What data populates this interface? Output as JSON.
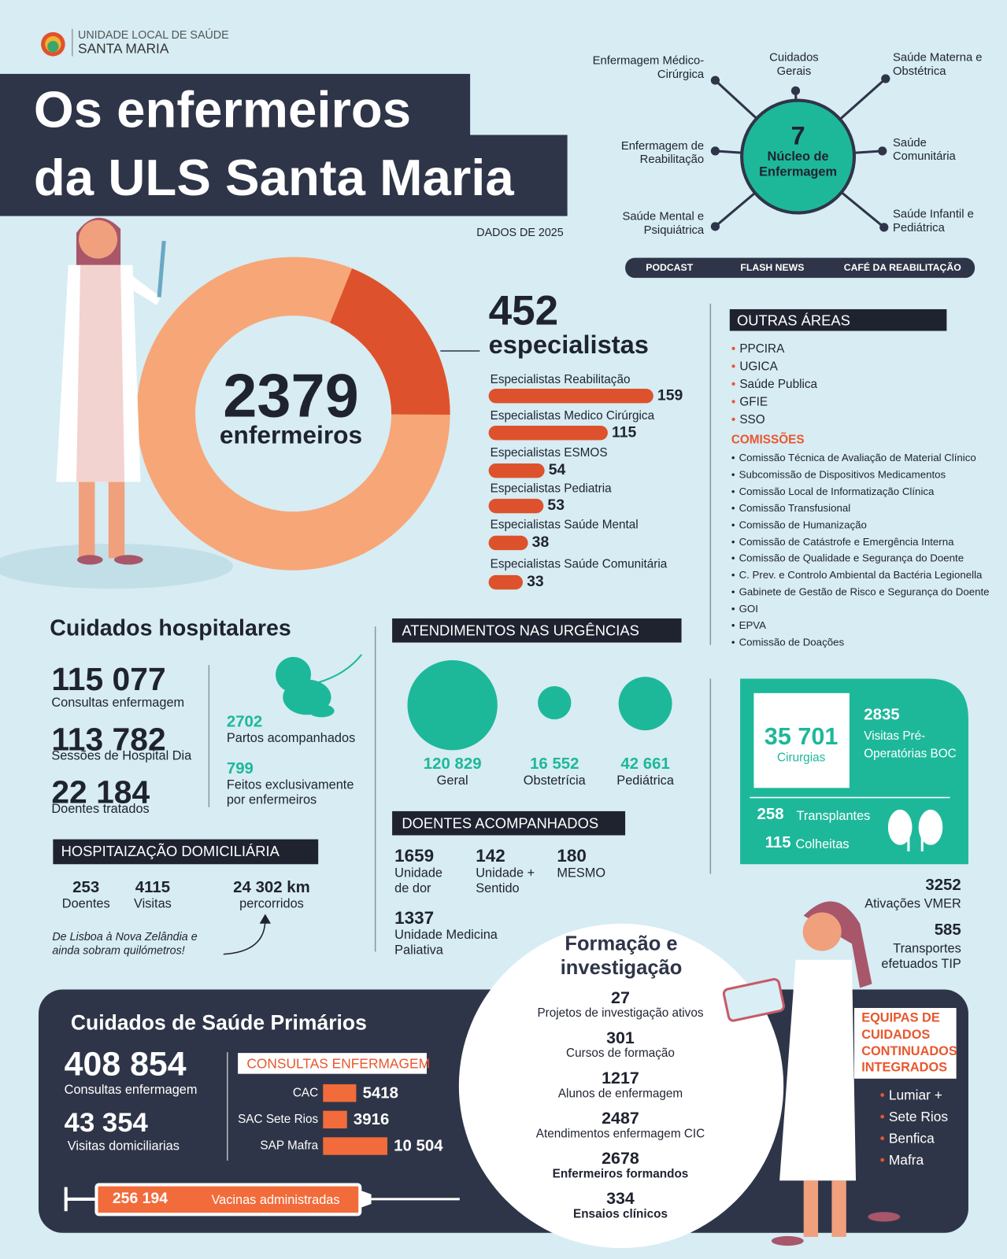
{
  "header": {
    "org_line1": "UNIDADE LOCAL DE SAÚDE",
    "org_line2": "SANTA MARIA",
    "title_line1": "Os enfermeiros",
    "title_line2": "da ULS Santa Maria",
    "date": "DADOS DE 2025"
  },
  "nucleo": {
    "count": "7",
    "label": "Núcleo de Enfermagem",
    "areas": [
      "Enfermagem Médico-Cirúrgica",
      "Cuidados Gerais",
      "Saúde Materna e Obstétrica",
      "Enfermagem de Reabilitação",
      "Saúde Comunitária",
      "Saúde Mental e Psiquiátrica",
      "Saúde Infantil e Pediátrica"
    ]
  },
  "tabs": [
    "PODCAST",
    "FLASH NEWS",
    "CAFÉ DA REABILITAÇÃO"
  ],
  "total": {
    "value": 2379,
    "label": "enfermeiros"
  },
  "especialistas": {
    "value": 452,
    "label": "especialistas",
    "items": [
      {
        "name": "Especialistas Reabilitação",
        "value": 159
      },
      {
        "name": "Especialistas Medico Cirúrgica",
        "value": 115
      },
      {
        "name": "Especialistas ESMOS",
        "value": 54
      },
      {
        "name": "Especialistas Pediatria",
        "value": 53
      },
      {
        "name": "Especialistas Saúde Mental",
        "value": 38
      },
      {
        "name": "Especialistas Saúde Comunitária",
        "value": 33
      }
    ]
  },
  "outras_areas": {
    "title": "OUTRAS ÁREAS",
    "items": [
      "PPCIRA",
      "UGICA",
      "Saúde Publica",
      "GFIE",
      "SSO"
    ],
    "comissoes_title": "COMISSÕES",
    "comissoes": [
      "Comissão Técnica de Avaliação de Material Clínico",
      "Subcomissão de Dispositivos Medicamentos",
      "Comissão Local de Informatização Clínica",
      "Comissão Transfusional",
      "Comissão de Humanização",
      "Comissão de Catástrofe e Emergência Interna",
      "Comissão de Qualidade e Segurança do Doente",
      "C. Prev. e Controlo Ambiental da Bactéria Legionella",
      "Gabinete de Gestão de Risco e Segurança do Doente",
      "GOI",
      "EPVA",
      "Comissão de Doações"
    ]
  },
  "hospitalares": {
    "title": "Cuidados hospitalares",
    "stats": [
      {
        "value": "115 077",
        "label": "Consultas enfermagem"
      },
      {
        "value": "113 782",
        "label": "Sessões de Hospital Dia"
      },
      {
        "value": "22 184",
        "label": "Doentes tratados"
      }
    ],
    "partos": {
      "value": "2702",
      "label": "Partos acompanhados"
    },
    "exclusivos": {
      "value": "799",
      "label": "Feitos exclusivamente por enfermeiros"
    }
  },
  "urgencias": {
    "title": "ATENDIMENTOS NAS URGÊNCIAS",
    "items": [
      {
        "value": 120829,
        "value_label": "120 829",
        "label": "Geral"
      },
      {
        "value": 16552,
        "value_label": "16 552",
        "label": "Obstetrícia"
      },
      {
        "value": 42661,
        "value_label": "42 661",
        "label": "Pediátrica"
      }
    ]
  },
  "doentes": {
    "title": "DOENTES ACOMPANHADOS",
    "items": [
      {
        "value": "1659",
        "label": "Unidade de dor"
      },
      {
        "value": "142",
        "label": "Unidade + Sentido"
      },
      {
        "value": "180",
        "label": "MESMO"
      },
      {
        "value": "1337",
        "label": "Unidade Medicina Paliativa"
      }
    ]
  },
  "cirurgias": {
    "value": "35 701",
    "label": "Cirurgias",
    "visitas_value": "2835",
    "visitas_label": "Visitas Pré-Operatórias BOC",
    "transplantes_value": "258",
    "transplantes_label": "Transplantes",
    "colheitas_value": "115",
    "colheitas_label": "Colheitas"
  },
  "vmer": {
    "value": "3252",
    "label": "Ativações VMER"
  },
  "tip": {
    "value": "585",
    "label": "Transportes efetuados TIP"
  },
  "domiciliaria": {
    "title": "HOSPITAIZAÇÃO DOMICILIÁRIA",
    "items": [
      {
        "value": "253",
        "label": "Doentes"
      },
      {
        "value": "4115",
        "label": "Visitas"
      },
      {
        "value": "24 302 km",
        "label": "percorridos"
      }
    ],
    "note": "De Lisboa à Nova Zelândia e ainda sobram quilómetros!"
  },
  "formacao": {
    "title": "Formação e investigação",
    "items": [
      {
        "value": "27",
        "label": "Projetos de investigação ativos"
      },
      {
        "value": "301",
        "label": "Cursos de formação"
      },
      {
        "value": "1217",
        "label": "Alunos de enfermagem"
      },
      {
        "value": "2487",
        "label": "Atendimentos enfermagem CIC"
      },
      {
        "value": "2678",
        "label": "Enfermeiros formandos"
      },
      {
        "value": "334",
        "label": "Ensaios clínicos"
      }
    ]
  },
  "primarios": {
    "title": "Cuidados de Saúde Primários",
    "consultas": {
      "value": "408 854",
      "label": "Consultas enfermagem"
    },
    "visitas": {
      "value": "43 354",
      "label": "Visitas domiciliarias"
    },
    "consultas_title": "CONSULTAS ENFERMAGEM",
    "bars": {
      "categories": [
        "CAC",
        "SAC Sete Rios",
        "SAP Mafra"
      ],
      "values": [
        5418,
        3916,
        10504
      ],
      "value_labels": [
        "5418",
        "3916",
        "10 504"
      ]
    },
    "vacinas": {
      "value": "256 194",
      "label": "Vacinas administradas"
    }
  },
  "equipas": {
    "title": "EQUIPAS DE CUIDADOS CONTINUADOS INTEGRADOS",
    "items": [
      "Lumiar +",
      "Sete Rios",
      "Benfica",
      "Mafra"
    ]
  }
}
